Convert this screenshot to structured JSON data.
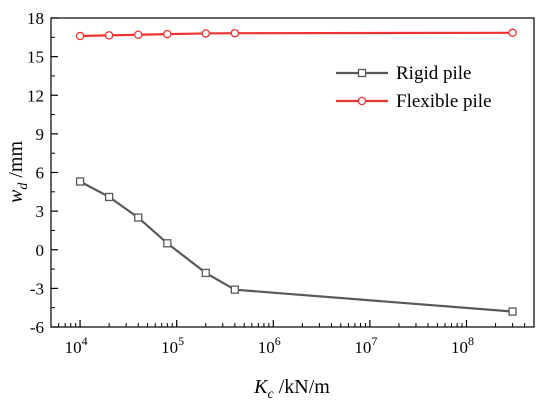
{
  "chart_data": {
    "type": "line",
    "xscale": "log",
    "xlim": [
      5000,
      500000000
    ],
    "ylim": [
      -6,
      18
    ],
    "yticks": [
      -6,
      -3,
      0,
      3,
      6,
      9,
      12,
      15,
      18
    ],
    "yticklabels": [
      "-6",
      "-3",
      "0",
      "3",
      "6",
      "9",
      "12",
      "15",
      "18"
    ],
    "xticks": [
      10000,
      100000,
      1000000,
      10000000,
      100000000
    ],
    "xtick_bases": [
      "10",
      "10",
      "10",
      "10",
      "10"
    ],
    "xtick_exps": [
      "4",
      "5",
      "6",
      "7",
      "8"
    ],
    "ylabel": {
      "main": "w",
      "sub": "d",
      "suffix": " /mm"
    },
    "xlabel": {
      "main": "K",
      "sub": "c",
      "suffix": " /kN/m"
    },
    "legend_position": "upper-right",
    "grid": false,
    "series": [
      {
        "name": "Rigid pile",
        "color": "#595959",
        "marker": "square",
        "x": [
          10000,
          20000,
          40000,
          80000,
          200000,
          400000,
          300000000
        ],
        "y": [
          5.3,
          4.1,
          2.5,
          0.5,
          -1.8,
          -3.1,
          -4.8
        ]
      },
      {
        "name": "Flexible pile",
        "color": "#ee3333",
        "marker": "circle",
        "x": [
          10000,
          20000,
          40000,
          80000,
          200000,
          400000,
          300000000
        ],
        "y": [
          16.6,
          16.65,
          16.7,
          16.75,
          16.8,
          16.82,
          16.85
        ]
      }
    ]
  }
}
